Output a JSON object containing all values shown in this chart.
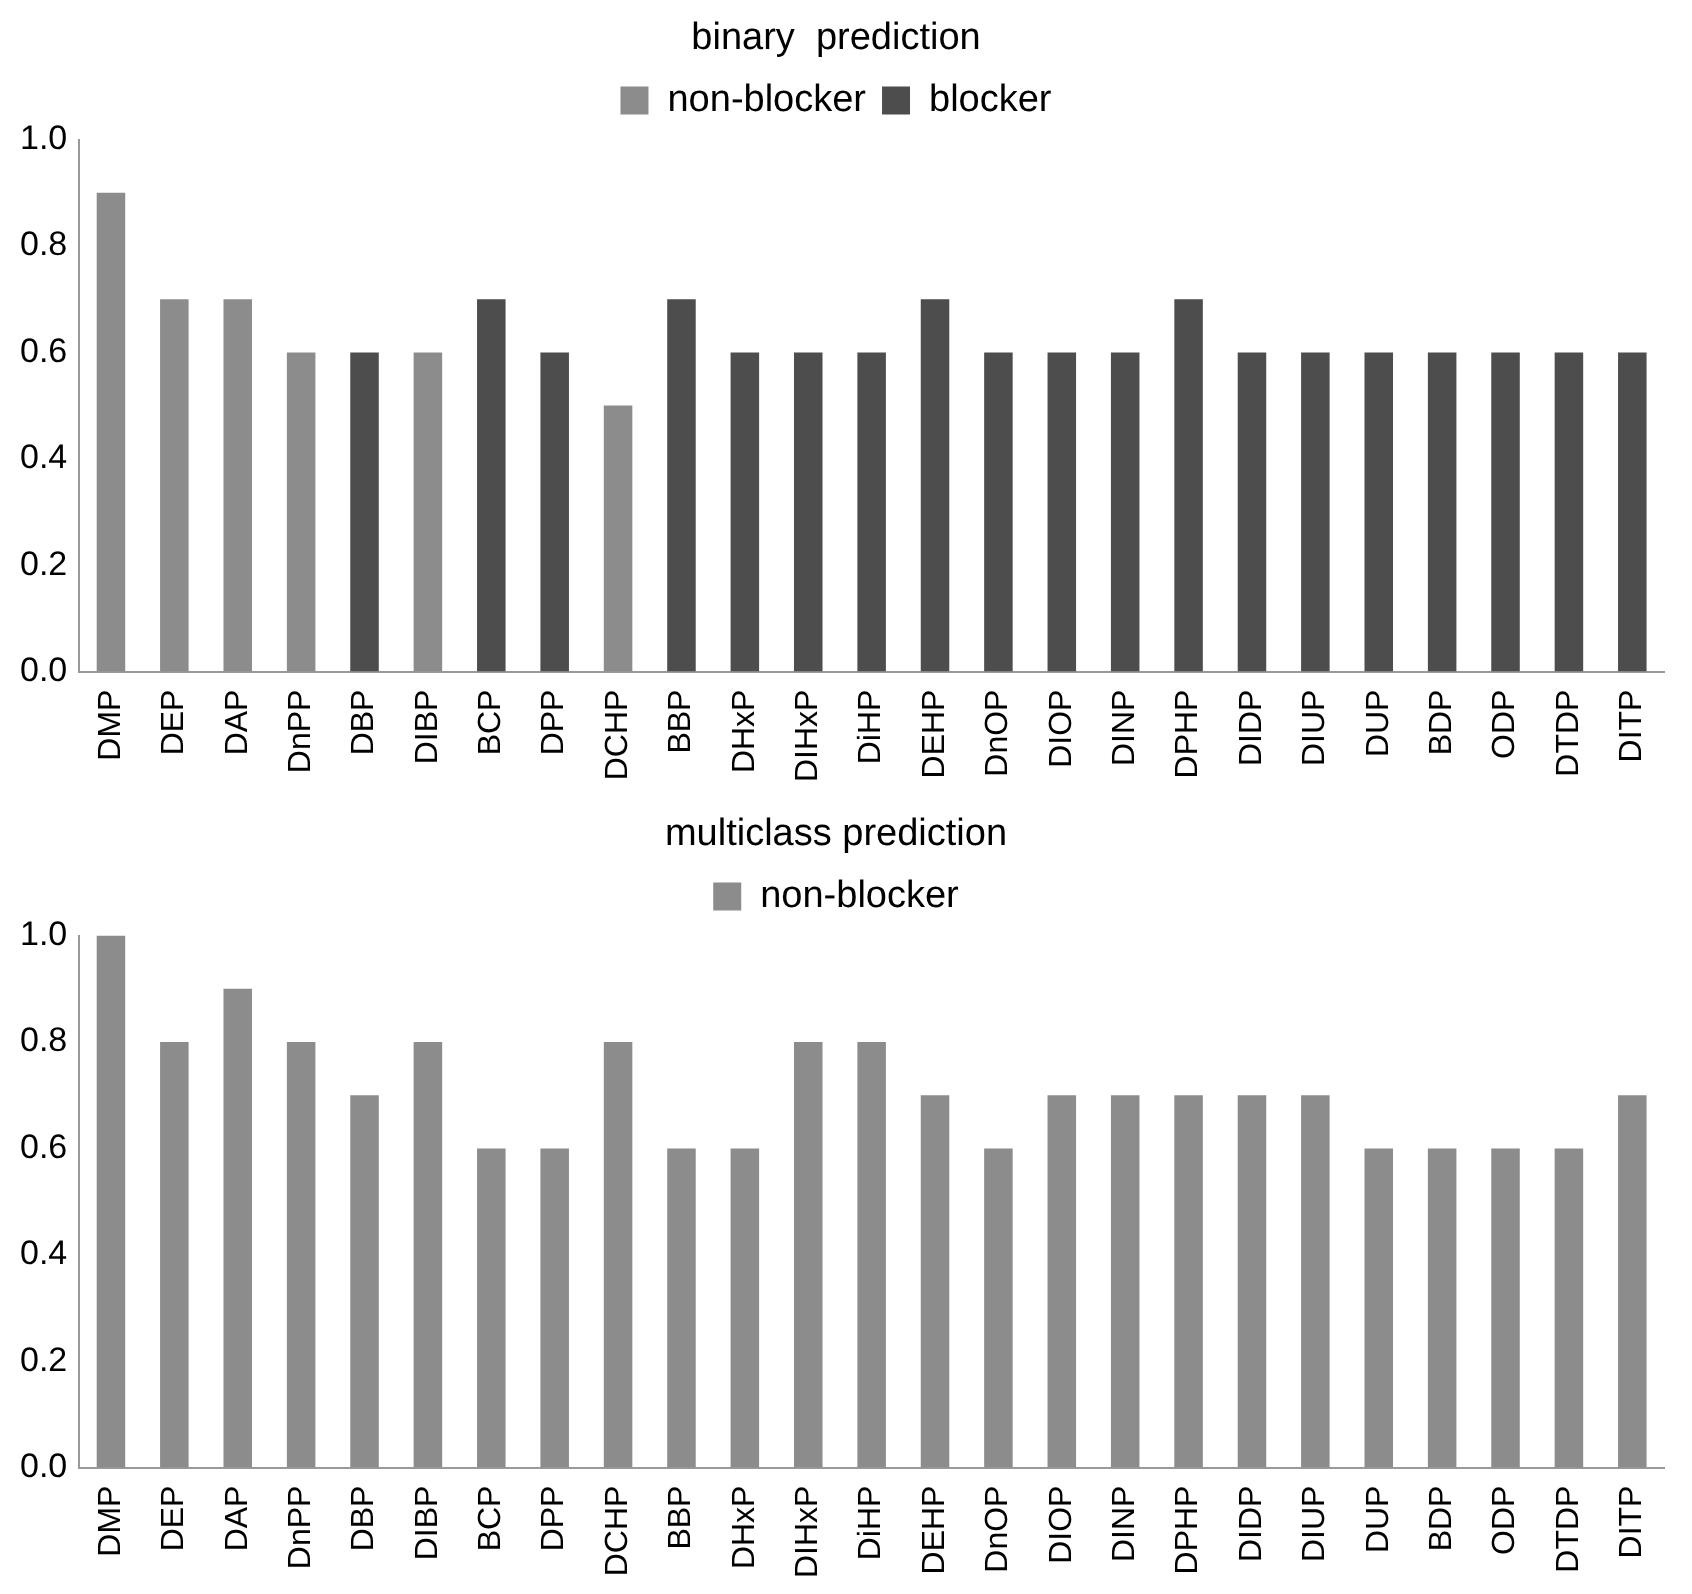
{
  "chart_data": [
    {
      "type": "bar",
      "title": "binary  prediction",
      "categories": [
        "DMP",
        "DEP",
        "DAP",
        "DnPP",
        "DBP",
        "DIBP",
        "BCP",
        "DPP",
        "DCHP",
        "BBP",
        "DHxP",
        "DIHxP",
        "DiHP",
        "DEHP",
        "DnOP",
        "DIOP",
        "DINP",
        "DPHP",
        "DIDP",
        "DIUP",
        "DUP",
        "BDP",
        "ODP",
        "DTDP",
        "DITP"
      ],
      "series": [
        {
          "name": "non-blocker",
          "color": "#8c8c8c",
          "values": [
            0.9,
            0.7,
            0.7,
            0.6,
            null,
            0.6,
            null,
            null,
            0.5,
            null,
            null,
            null,
            null,
            null,
            null,
            null,
            null,
            null,
            null,
            null,
            null,
            null,
            null,
            null,
            null
          ]
        },
        {
          "name": "blocker",
          "color": "#4d4d4d",
          "values": [
            null,
            null,
            null,
            null,
            0.6,
            null,
            0.7,
            0.6,
            null,
            0.7,
            0.6,
            0.6,
            0.6,
            0.7,
            0.6,
            0.6,
            0.6,
            0.7,
            0.6,
            0.6,
            0.6,
            0.6,
            0.6,
            0.6,
            0.6
          ]
        }
      ],
      "ylim": [
        0,
        1
      ],
      "yticks": [
        {
          "value": 0,
          "label": "0.0"
        },
        {
          "value": 0.2,
          "label": "0.2"
        },
        {
          "value": 0.4,
          "label": "0.4"
        },
        {
          "value": 0.6,
          "label": "0.6"
        },
        {
          "value": 0.8,
          "label": "0.8"
        },
        {
          "value": 1,
          "label": "1.0"
        }
      ],
      "grid": false,
      "legend": "top"
    },
    {
      "type": "bar",
      "title": "multiclass prediction",
      "categories": [
        "DMP",
        "DEP",
        "DAP",
        "DnPP",
        "DBP",
        "DIBP",
        "BCP",
        "DPP",
        "DCHP",
        "BBP",
        "DHxP",
        "DIHxP",
        "DiHP",
        "DEHP",
        "DnOP",
        "DIOP",
        "DINP",
        "DPHP",
        "DIDP",
        "DIUP",
        "DUP",
        "BDP",
        "ODP",
        "DTDP",
        "DITP"
      ],
      "series": [
        {
          "name": "non-blocker",
          "color": "#8c8c8c",
          "values": [
            1.0,
            0.8,
            0.9,
            0.8,
            0.7,
            0.8,
            0.6,
            0.6,
            0.8,
            0.6,
            0.6,
            0.8,
            0.8,
            0.7,
            0.6,
            0.7,
            0.7,
            0.7,
            0.7,
            0.7,
            0.6,
            0.6,
            0.6,
            0.6,
            0.7
          ]
        }
      ],
      "ylim": [
        0,
        1
      ],
      "yticks": [
        {
          "value": 0,
          "label": "0.0"
        },
        {
          "value": 0.2,
          "label": "0.2"
        },
        {
          "value": 0.4,
          "label": "0.4"
        },
        {
          "value": 0.6,
          "label": "0.6"
        },
        {
          "value": 0.8,
          "label": "0.8"
        },
        {
          "value": 1,
          "label": "1.0"
        }
      ],
      "grid": false,
      "legend": "top"
    }
  ]
}
